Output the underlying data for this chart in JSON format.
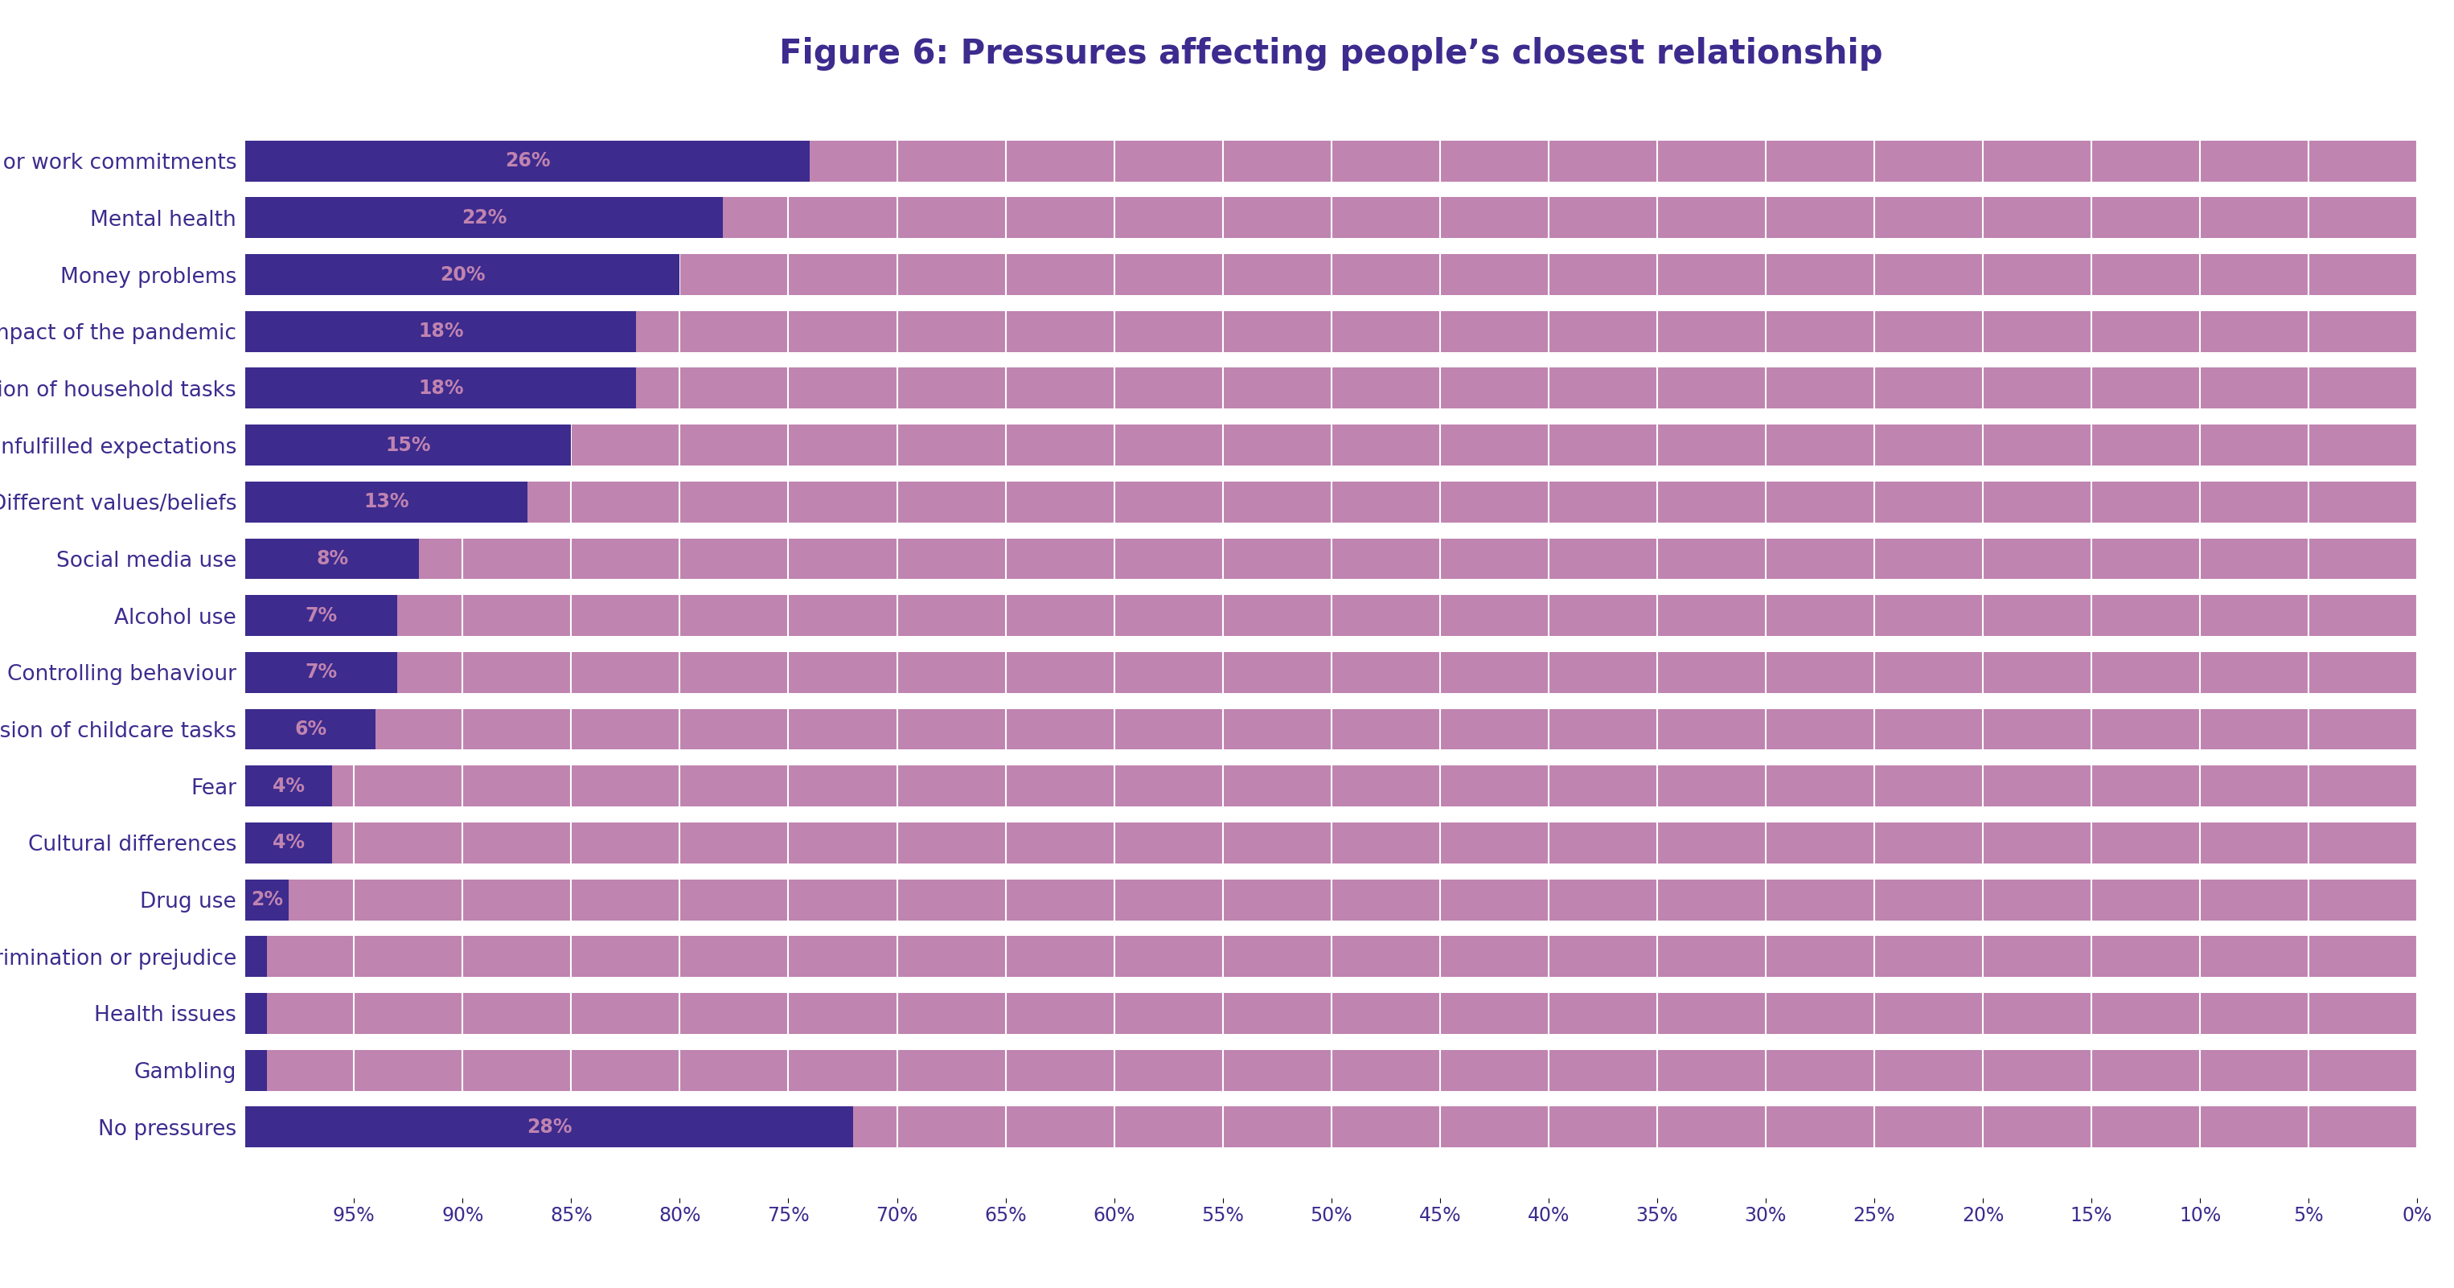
{
  "title": "Figure 6: Pressures affecting people’s closest relationship",
  "title_color": "#3d2b8e",
  "title_fontsize": 30,
  "background_color": "#ffffff",
  "bar_color_dark": "#3d2b8e",
  "bar_color_light": "#c084b0",
  "categories": [
    "Study or work commitments",
    "Mental health",
    "Money problems",
    "Impact of the pandemic",
    "Division of household tasks",
    "Unfulfilled expectations",
    "Different values/beliefs",
    "Social media use",
    "Alcohol use",
    "Controlling behaviour",
    "Division of childcare tasks",
    "Fear",
    "Cultural differences",
    "Drug use",
    "Discrimination or prejudice",
    "Health issues",
    "Gambling",
    "No pressures"
  ],
  "values": [
    26,
    22,
    20,
    18,
    18,
    15,
    13,
    8,
    7,
    7,
    6,
    4,
    4,
    2,
    1,
    1,
    1,
    28
  ],
  "labels": [
    "26%",
    "22%",
    "20%",
    "18%",
    "18%",
    "15%",
    "13%",
    "8%",
    "7%",
    "7%",
    "6%",
    "4%",
    "4%",
    "2%",
    "",
    "",
    "",
    "28%"
  ],
  "x_ticks": [
    95,
    90,
    85,
    80,
    75,
    70,
    65,
    60,
    55,
    50,
    45,
    40,
    35,
    30,
    25,
    20,
    15,
    10,
    5,
    0
  ],
  "x_max": 100,
  "label_fontsize": 17,
  "tick_fontsize": 17,
  "category_fontsize": 19,
  "bar_height": 0.72
}
